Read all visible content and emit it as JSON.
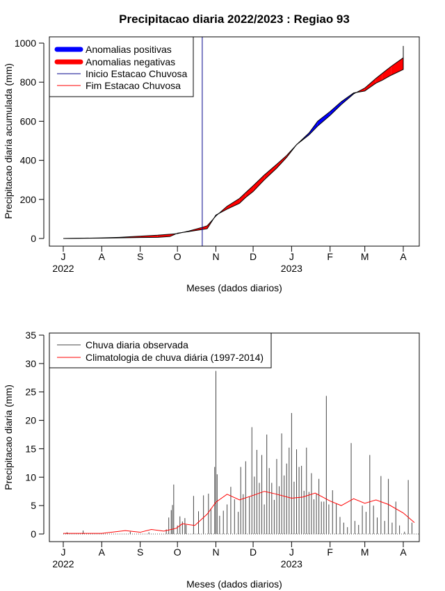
{
  "page": {
    "title": "Precipitacao diaria 2022/2023 : Regiao 93"
  },
  "chart_data": [
    {
      "type": "area",
      "title": "Precipitacao diaria 2022/2023 : Regiao 93",
      "xlabel": "Meses (dados diarios)",
      "ylabel": "Precipitacao diaria acumulada (mm)",
      "ylim": [
        0,
        1000
      ],
      "yticks": [
        0,
        200,
        400,
        600,
        800,
        1000
      ],
      "x_ticks": [
        {
          "date": "2022-07-01",
          "label": "J"
        },
        {
          "date": "2022-08-01",
          "label": "A"
        },
        {
          "date": "2022-09-01",
          "label": "S"
        },
        {
          "date": "2022-10-01",
          "label": "O"
        },
        {
          "date": "2022-11-01",
          "label": "N"
        },
        {
          "date": "2022-12-01",
          "label": "D"
        },
        {
          "date": "2023-01-01",
          "label": "J"
        },
        {
          "date": "2023-02-01",
          "label": "F"
        },
        {
          "date": "2023-03-01",
          "label": "M"
        },
        {
          "date": "2023-04-01",
          "label": "A"
        }
      ],
      "year_labels": [
        {
          "date": "2022-07-01",
          "label": "2022"
        },
        {
          "date": "2023-01-01",
          "label": "2023"
        }
      ],
      "legend_position": "top-left",
      "legend": [
        {
          "label": "Anomalias positivas",
          "color": "#0000ff",
          "style": "thick-line"
        },
        {
          "label": "Anomalias negativas",
          "color": "#ff0000",
          "style": "thick-line"
        },
        {
          "label": "Inicio Estacao Chuvosa",
          "color": "#00008b",
          "style": "line"
        },
        {
          "label": "Fim Estacao Chuvosa",
          "color": "#ff0000",
          "style": "line"
        }
      ],
      "rainy_season_start": "2022-10-21",
      "series": [
        {
          "name": "observed",
          "x": [
            "2022-07-01",
            "2022-08-01",
            "2022-08-15",
            "2022-09-01",
            "2022-09-15",
            "2022-09-25",
            "2022-10-01",
            "2022-10-10",
            "2022-10-20",
            "2022-10-25",
            "2022-11-01",
            "2022-11-10",
            "2022-11-20",
            "2022-11-25",
            "2022-12-01",
            "2022-12-10",
            "2022-12-20",
            "2022-12-28",
            "2023-01-05",
            "2023-01-15",
            "2023-01-22",
            "2023-02-01",
            "2023-02-10",
            "2023-02-20",
            "2023-03-01",
            "2023-03-10",
            "2023-03-15",
            "2023-03-22",
            "2023-04-01",
            "2023-04-01"
          ],
          "values": [
            0,
            2,
            3,
            5,
            6,
            10,
            27,
            35,
            45,
            50,
            120,
            150,
            180,
            210,
            240,
            300,
            360,
            415,
            480,
            540,
            600,
            650,
            700,
            745,
            755,
            795,
            810,
            835,
            865,
            870
          ]
        },
        {
          "name": "climatology",
          "x": [
            "2022-07-01",
            "2022-08-01",
            "2022-08-15",
            "2022-09-01",
            "2022-09-15",
            "2022-09-25",
            "2022-10-01",
            "2022-10-10",
            "2022-10-20",
            "2022-10-25",
            "2022-11-01",
            "2022-11-10",
            "2022-11-20",
            "2022-11-25",
            "2022-12-01",
            "2022-12-10",
            "2022-12-20",
            "2022-12-28",
            "2023-01-05",
            "2023-01-15",
            "2023-01-22",
            "2023-02-01",
            "2023-02-10",
            "2023-02-20",
            "2023-03-01",
            "2023-03-10",
            "2023-03-15",
            "2023-03-22",
            "2023-04-01",
            "2023-04-01"
          ],
          "values": [
            0,
            3,
            6,
            12,
            17,
            22,
            25,
            38,
            55,
            65,
            115,
            165,
            205,
            235,
            270,
            325,
            380,
            425,
            480,
            530,
            575,
            630,
            685,
            740,
            770,
            820,
            845,
            880,
            925,
            985
          ]
        }
      ]
    },
    {
      "type": "bar",
      "xlabel": "Meses (dados diarios)",
      "ylabel": "Precipitacao diaria (mm)",
      "ylim": [
        0,
        35
      ],
      "yticks": [
        0,
        5,
        10,
        15,
        20,
        25,
        30,
        35
      ],
      "x_ticks": [
        {
          "date": "2022-07-01",
          "label": "J"
        },
        {
          "date": "2022-08-01",
          "label": "A"
        },
        {
          "date": "2022-09-01",
          "label": "S"
        },
        {
          "date": "2022-10-01",
          "label": "O"
        },
        {
          "date": "2022-11-01",
          "label": "N"
        },
        {
          "date": "2022-12-01",
          "label": "D"
        },
        {
          "date": "2023-01-01",
          "label": "J"
        },
        {
          "date": "2023-02-01",
          "label": "F"
        },
        {
          "date": "2023-03-01",
          "label": "M"
        },
        {
          "date": "2023-04-01",
          "label": "A"
        }
      ],
      "year_labels": [
        {
          "date": "2022-07-01",
          "label": "2022"
        },
        {
          "date": "2023-01-01",
          "label": "2023"
        }
      ],
      "legend_position": "top-left",
      "legend": [
        {
          "label": "Chuva diaria observada",
          "color": "#444444"
        },
        {
          "label": "Climatologia de chuva diária (1997-2014)",
          "color": "#ff0000"
        }
      ],
      "series": [
        {
          "name": "Chuva diaria observada",
          "x": [
            "2022-07-04",
            "2022-07-17",
            "2022-08-24",
            "2022-09-08",
            "2022-09-22",
            "2022-09-24",
            "2022-09-26",
            "2022-09-27",
            "2022-09-28",
            "2022-10-01",
            "2022-10-03",
            "2022-10-05",
            "2022-10-07",
            "2022-10-08",
            "2022-10-14",
            "2022-10-18",
            "2022-10-22",
            "2022-10-26",
            "2022-10-28",
            "2022-10-31",
            "2022-11-01",
            "2022-11-02",
            "2022-11-04",
            "2022-11-07",
            "2022-11-10",
            "2022-11-13",
            "2022-11-16",
            "2022-11-19",
            "2022-11-21",
            "2022-11-23",
            "2022-11-25",
            "2022-11-28",
            "2022-11-30",
            "2022-12-02",
            "2022-12-04",
            "2022-12-06",
            "2022-12-08",
            "2022-12-10",
            "2022-12-12",
            "2022-12-14",
            "2022-12-16",
            "2022-12-18",
            "2022-12-20",
            "2022-12-22",
            "2022-12-24",
            "2022-12-26",
            "2022-12-28",
            "2022-12-30",
            "2023-01-01",
            "2023-01-03",
            "2023-01-05",
            "2023-01-07",
            "2023-01-09",
            "2023-01-11",
            "2023-01-13",
            "2023-01-15",
            "2023-01-17",
            "2023-01-19",
            "2023-01-21",
            "2023-01-23",
            "2023-01-25",
            "2023-01-27",
            "2023-01-29",
            "2023-01-31",
            "2023-02-03",
            "2023-02-06",
            "2023-02-09",
            "2023-02-12",
            "2023-02-15",
            "2023-02-18",
            "2023-02-21",
            "2023-02-24",
            "2023-02-27",
            "2023-03-02",
            "2023-03-05",
            "2023-03-08",
            "2023-03-11",
            "2023-03-14",
            "2023-03-17",
            "2023-03-20",
            "2023-03-23",
            "2023-03-26",
            "2023-03-29",
            "2023-04-02",
            "2023-04-05",
            "2023-04-08"
          ],
          "values": [
            0.3,
            0.6,
            0.4,
            0.3,
            0.8,
            2.9,
            4.2,
            5.1,
            8.7,
            1.5,
            3.1,
            2.2,
            2.8,
            1.6,
            6.7,
            4.0,
            6.8,
            7.1,
            4.5,
            11.8,
            28.7,
            10.5,
            3.2,
            4.1,
            5.2,
            8.3,
            6.1,
            3.9,
            11.8,
            7.0,
            12.8,
            6.6,
            18.8,
            10.1,
            14.8,
            9.0,
            13.9,
            5.2,
            17.5,
            11.6,
            9.0,
            6.0,
            13.2,
            8.4,
            17.7,
            10.3,
            12.4,
            15.2,
            21.3,
            9.2,
            14.9,
            11.8,
            12.0,
            7.6,
            15.2,
            7.4,
            10.7,
            6.1,
            7.1,
            9.7,
            5.7,
            5.7,
            24.3,
            5.2,
            7.7,
            5.3,
            3.0,
            2.0,
            1.2,
            16.0,
            2.3,
            1.6,
            5.0,
            3.9,
            13.9,
            5.0,
            2.9,
            10.2,
            2.3,
            9.7,
            2.0,
            5.7,
            1.5,
            0.4,
            9.5,
            2.0
          ]
        },
        {
          "name": "Climatologia de chuva diária (1997-2014)",
          "x": [
            "2022-07-01",
            "2022-08-01",
            "2022-08-20",
            "2022-09-01",
            "2022-09-10",
            "2022-09-20",
            "2022-09-30",
            "2022-10-05",
            "2022-10-15",
            "2022-10-25",
            "2022-11-01",
            "2022-11-10",
            "2022-11-20",
            "2022-12-01",
            "2022-12-10",
            "2022-12-20",
            "2023-01-01",
            "2023-01-10",
            "2023-01-20",
            "2023-02-01",
            "2023-02-10",
            "2023-02-20",
            "2023-03-01",
            "2023-03-10",
            "2023-03-20",
            "2023-04-01",
            "2023-04-10"
          ],
          "values": [
            0.1,
            0.1,
            0.6,
            0.3,
            0.8,
            0.5,
            1.0,
            1.8,
            1.5,
            3.5,
            5.6,
            7.0,
            6.0,
            6.8,
            7.5,
            7.0,
            6.3,
            6.5,
            7.2,
            5.8,
            5.0,
            6.2,
            5.4,
            6.0,
            5.2,
            3.7,
            2.0
          ]
        }
      ]
    }
  ]
}
